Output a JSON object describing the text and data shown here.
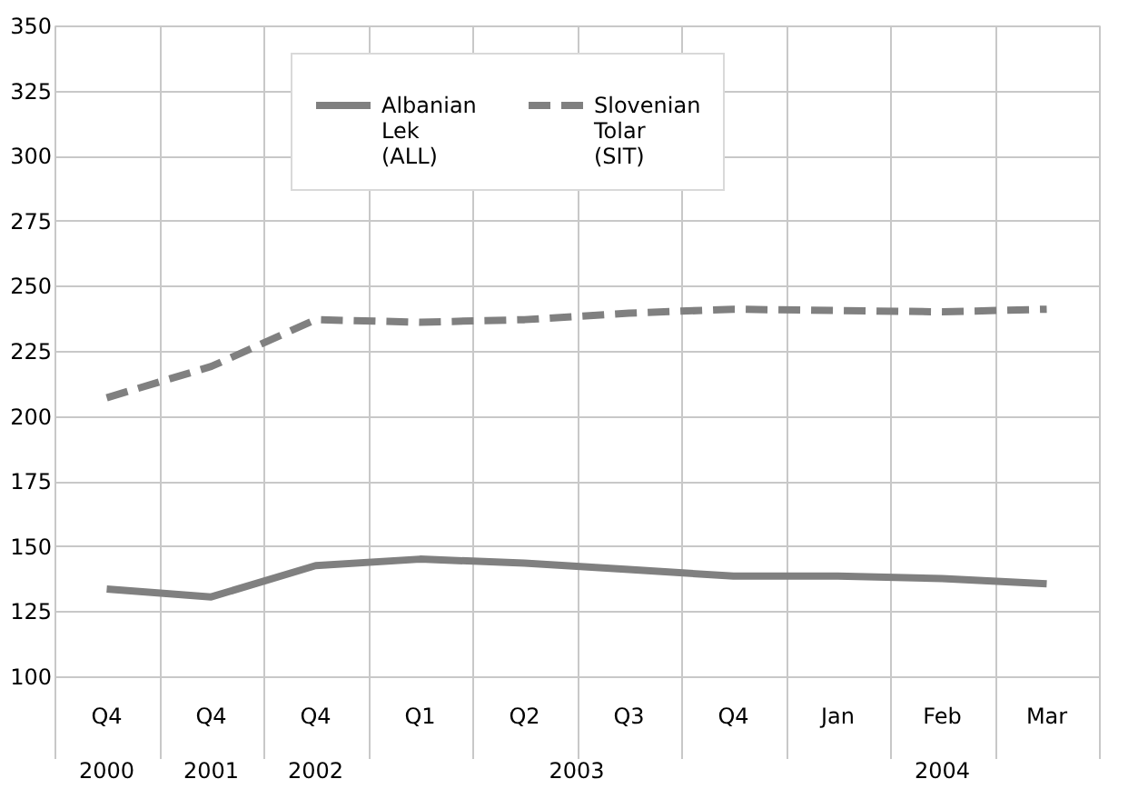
{
  "chart_data": {
    "type": "line",
    "categories": [
      "Q4",
      "Q4",
      "Q4",
      "Q1",
      "Q2",
      "Q3",
      "Q4",
      "Jan",
      "Feb",
      "Mar"
    ],
    "annotations": [
      "2000",
      "2001",
      "2002",
      "2003",
      "2004"
    ],
    "series": [
      {
        "name": "Albanian Lek (ALL)",
        "color": "#808080",
        "line_style": "solid",
        "values": [
          133.5,
          130.5,
          142.5,
          145,
          143.5,
          141,
          138.5,
          138.5,
          137.5,
          135.5
        ]
      },
      {
        "name": "Slovenian Tolar (SIT)",
        "color": "#808080",
        "line_style": "dashed",
        "values": [
          207,
          219,
          237,
          236,
          237,
          239.5,
          241,
          240.5,
          240,
          241
        ]
      }
    ],
    "ylim": [
      100,
      350
    ],
    "yticks": [
      100,
      125,
      150,
      175,
      200,
      225,
      250,
      275,
      300,
      325,
      350
    ],
    "grid": true,
    "legend": "top",
    "marker": "none"
  }
}
